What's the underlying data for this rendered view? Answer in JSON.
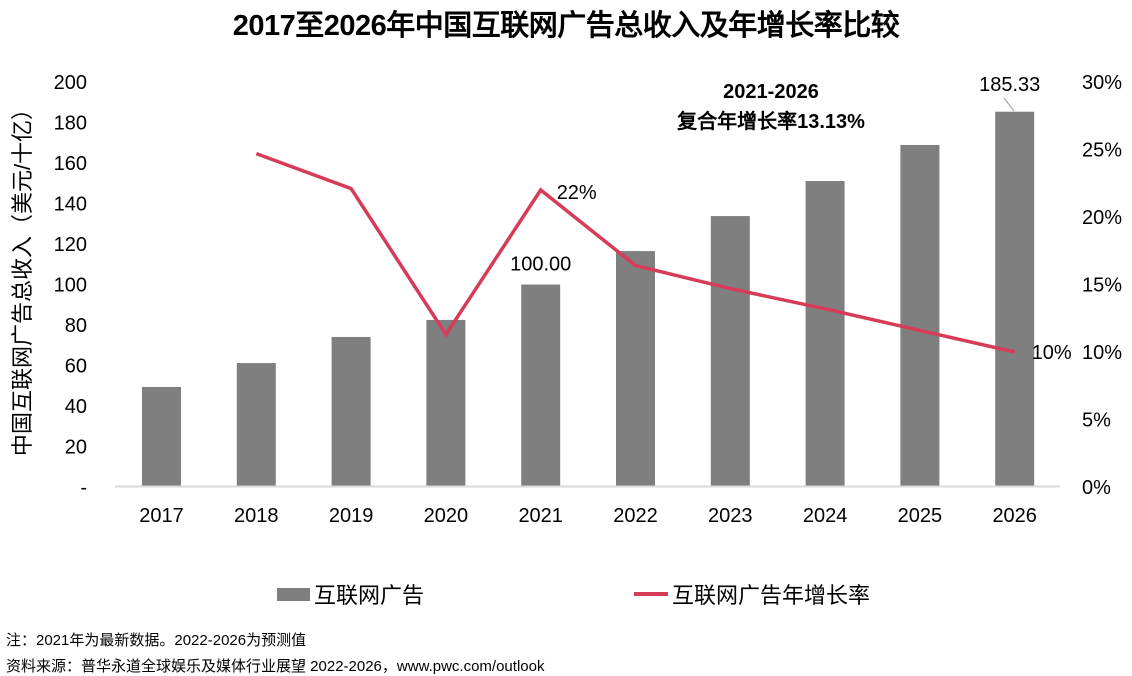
{
  "chart_data": {
    "type": "bar",
    "title": "2017至2026年中国互联网广告总收入及年增长率比较",
    "xlabel": "",
    "ylabel": "中国互联网广告总收入（美元/十亿）",
    "y2label": "",
    "categories": [
      "2017",
      "2018",
      "2019",
      "2020",
      "2021",
      "2022",
      "2023",
      "2024",
      "2025",
      "2026"
    ],
    "series": [
      {
        "name": "互联网广告",
        "type": "bar",
        "axis": "left",
        "color": "#7f7f7f",
        "values": [
          49.4,
          61.2,
          74.1,
          82.5,
          100.0,
          116.5,
          133.8,
          151.1,
          168.9,
          185.33
        ]
      },
      {
        "name": "互联网广告年增长率",
        "type": "line",
        "axis": "right",
        "color": "#d63c58",
        "values": [
          null,
          24.7,
          22.1,
          11.3,
          22.0,
          16.4,
          14.7,
          13.2,
          11.6,
          10.0
        ]
      }
    ],
    "ylim": [
      0,
      200
    ],
    "y_ticks": [
      "-",
      "20",
      "40",
      "60",
      "80",
      "100",
      "120",
      "140",
      "160",
      "180",
      "200"
    ],
    "y2lim": [
      0,
      30
    ],
    "y2_ticks": [
      "0%",
      "5%",
      "10%",
      "15%",
      "20%",
      "25%",
      "30%"
    ],
    "data_labels": [
      {
        "series": "互联网广告",
        "category": "2021",
        "text": "100.00"
      },
      {
        "series": "互联网广告",
        "category": "2026",
        "text": "185.33"
      },
      {
        "series": "互联网广告年增长率",
        "category": "2021",
        "text": "22%"
      },
      {
        "series": "互联网广告年增长率",
        "category": "2026",
        "text": "10%"
      }
    ],
    "annotation": {
      "line1": "2021-2026",
      "line2": "复合年增长率13.13%"
    },
    "legend_position": "bottom",
    "grid": false
  },
  "notes": {
    "note": "注：2021年为最新数据。2022-2026为预测值",
    "source": "资料来源：普华永道全球娱乐及媒体行业展望 2022-2026，www.pwc.com/outlook"
  }
}
